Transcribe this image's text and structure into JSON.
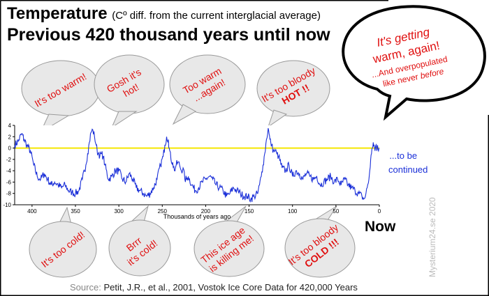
{
  "title": "Temperature",
  "title_sub": "(Cº diff. from the current interglacial average)",
  "subtitle": "Previous 420 thousand years until now",
  "now_label": "Now",
  "continued": [
    "...to be",
    "continued"
  ],
  "source_prefix": "Source:",
  "source_text": "Petit, J.R., et al., 2001, Vostok Ice Core Data for 420,000 Years",
  "watermark": "Mysterium24.se  2020",
  "bubbles_top": [
    {
      "lines": [
        "It's too warm!"
      ]
    },
    {
      "lines": [
        "Gosh it's",
        "hot!"
      ]
    },
    {
      "lines": [
        "Too warm",
        "...again!"
      ]
    },
    {
      "lines": [
        "It's too bloody",
        "HOT !!"
      ]
    }
  ],
  "bubbles_bottom": [
    {
      "lines": [
        "It's too cold!"
      ]
    },
    {
      "lines": [
        "Brrr",
        "it's cold!"
      ]
    },
    {
      "lines": [
        "This ice age",
        "is killing me!"
      ]
    },
    {
      "lines": [
        "It's too bloody",
        "COLD !!!"
      ]
    }
  ],
  "big_bubble": {
    "line1": "It's getting",
    "line2": "warm, again!",
    "line3": "...And overpopulated",
    "line4": "like never",
    "line4_em": "before"
  },
  "colors": {
    "line": "#1a2fd8",
    "zero_line": "#f5e600",
    "bubble_text": "#e01010",
    "bubble_fill": "#e8e8e8",
    "bubble_stroke": "#999999"
  },
  "chart_data": {
    "type": "line",
    "xlabel": "Thousands of years ago",
    "ylabel": "",
    "xlim": [
      420,
      0
    ],
    "ylim": [
      -10,
      4
    ],
    "xticks": [
      400,
      350,
      300,
      250,
      200,
      150,
      100,
      50,
      0
    ],
    "yticks": [
      4,
      2,
      0,
      -2,
      -4,
      -6,
      -8,
      -10
    ],
    "reference_line_y": 0,
    "grid": false,
    "series": [
      {
        "x": [
          420,
          416,
          412,
          409,
          406,
          402,
          398,
          394,
          390,
          386,
          382,
          378,
          374,
          370,
          366,
          362,
          358,
          354,
          350,
          346,
          342,
          338,
          336,
          334,
          332,
          330,
          328,
          326,
          325,
          324,
          323,
          322,
          320,
          318,
          316,
          312,
          308,
          304,
          300,
          296,
          292,
          288,
          284,
          280,
          276,
          272,
          268,
          264,
          260,
          256,
          252,
          249,
          247,
          245,
          243,
          242,
          240,
          238,
          236,
          234,
          232,
          230,
          228,
          226,
          224,
          222,
          220,
          216,
          212,
          208,
          204,
          200,
          196,
          192,
          188,
          184,
          180,
          176,
          172,
          168,
          164,
          160,
          156,
          152,
          148,
          144,
          140,
          138,
          136,
          134,
          132,
          130,
          128,
          127,
          126,
          125,
          124,
          122,
          120,
          118,
          116,
          112,
          108,
          104,
          100,
          96,
          92,
          88,
          84,
          80,
          76,
          72,
          68,
          64,
          60,
          56,
          52,
          48,
          44,
          40,
          36,
          32,
          28,
          24,
          20,
          18,
          16,
          14,
          12,
          11,
          10,
          9,
          8,
          7,
          6,
          5,
          4,
          3,
          2,
          1,
          0
        ],
        "y": [
          0.5,
          1.2,
          2.5,
          1.5,
          0.5,
          -0.5,
          -3.0,
          -5.0,
          -5.5,
          -4.5,
          -5.5,
          -6.5,
          -6.0,
          -6.5,
          -7.0,
          -6.5,
          -7.5,
          -7.8,
          -8.0,
          -7.5,
          -5.5,
          -3.0,
          -1.0,
          1.0,
          2.8,
          3.2,
          2.0,
          0.5,
          -0.5,
          -1.0,
          -0.8,
          -1.5,
          -1.0,
          -1.5,
          -3.0,
          -5.5,
          -5.0,
          -4.0,
          -4.0,
          -5.5,
          -6.0,
          -4.5,
          -5.5,
          -7.0,
          -7.5,
          -8.0,
          -8.5,
          -8.0,
          -7.0,
          -5.5,
          -3.0,
          -1.5,
          0.5,
          2.0,
          1.5,
          0.0,
          -2.0,
          -2.5,
          -4.0,
          -3.0,
          -2.5,
          -3.0,
          -4.0,
          -3.5,
          -5.5,
          -5.5,
          -5.0,
          -6.5,
          -7.5,
          -7.0,
          -6.0,
          -5.5,
          -5.0,
          -5.5,
          -6.5,
          -7.0,
          -7.5,
          -8.5,
          -8.0,
          -7.0,
          -7.5,
          -8.0,
          -8.5,
          -8.5,
          -9.0,
          -8.5,
          -8.0,
          -6.5,
          -5.0,
          -3.0,
          -1.0,
          1.5,
          3.5,
          2.5,
          1.5,
          1.0,
          0.5,
          -0.5,
          -0.5,
          -1.0,
          -1.5,
          -3.5,
          -4.0,
          -3.0,
          -5.0,
          -4.0,
          -4.5,
          -5.5,
          -4.5,
          -5.0,
          -5.5,
          -5.0,
          -6.5,
          -6.0,
          -5.5,
          -5.0,
          -6.0,
          -5.5,
          -6.5,
          -5.5,
          -6.5,
          -7.0,
          -7.5,
          -8.0,
          -8.5,
          -9.0,
          -8.5,
          -7.0,
          -5.5,
          -4.0,
          -2.0,
          -1.0,
          0.0,
          1.0,
          0.5,
          -0.5,
          0.5,
          -0.5,
          0.5,
          -0.5,
          0.0
        ]
      }
    ]
  }
}
